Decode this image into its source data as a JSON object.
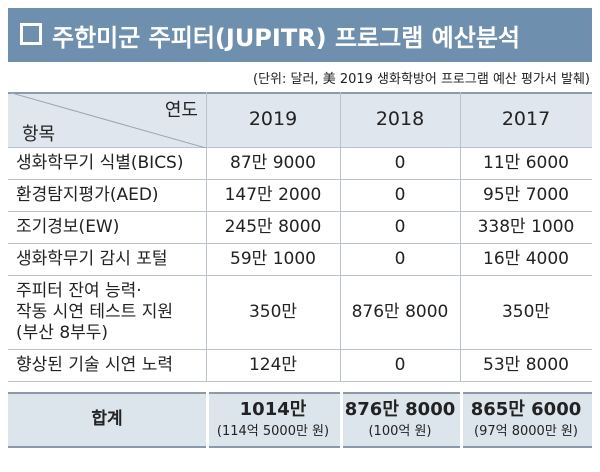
{
  "header": {
    "title": "주한미군 주피터(JUPITR) 프로그램 예산분석",
    "source": "(단위: 달러, 美 2019 생화학방어 프로그램 예산 평가서 발췌)"
  },
  "table": {
    "corner_top": "연도",
    "corner_bottom": "항목",
    "columns": [
      "2019",
      "2018",
      "2017"
    ],
    "rows": [
      {
        "item": "생화학무기 식별(BICS)",
        "values": [
          "87만 9000",
          "0",
          "11만 6000"
        ]
      },
      {
        "item": "환경탐지평가(AED)",
        "values": [
          "147만 2000",
          "0",
          "95만 7000"
        ]
      },
      {
        "item": "조기경보(EW)",
        "values": [
          "245만 8000",
          "0",
          "338만 1000"
        ]
      },
      {
        "item": "생화학무기 감시 포털",
        "values": [
          "59만 1000",
          "0",
          "16만 4000"
        ]
      },
      {
        "item": "주피터 잔여 능력·\n작동 시연 테스트 지원\n(부산 8부두)",
        "values": [
          "350만",
          "876만 8000",
          "350만"
        ]
      },
      {
        "item": "향상된 기술 시연 노력",
        "values": [
          "124만",
          "0",
          "53만 8000"
        ]
      }
    ],
    "total": {
      "label": "합계",
      "values": [
        {
          "amount": "1014만",
          "note": "(114억 5000만 원)"
        },
        {
          "amount": "876만 8000",
          "note": "(100억 원)"
        },
        {
          "amount": "865만 6000",
          "note": "(97억 8000만 원)"
        }
      ]
    }
  }
}
